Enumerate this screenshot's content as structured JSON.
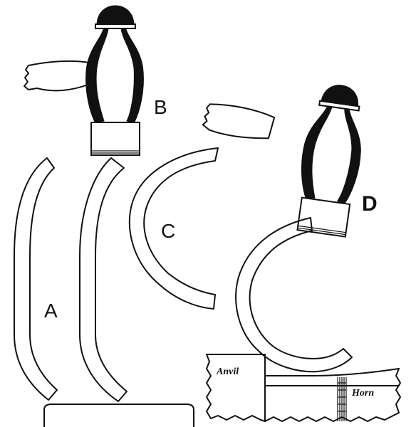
{
  "labels": {
    "a": "A",
    "b": "B",
    "c": "C",
    "d": "D",
    "anvil": "Anvil",
    "horn": "Horn"
  }
}
